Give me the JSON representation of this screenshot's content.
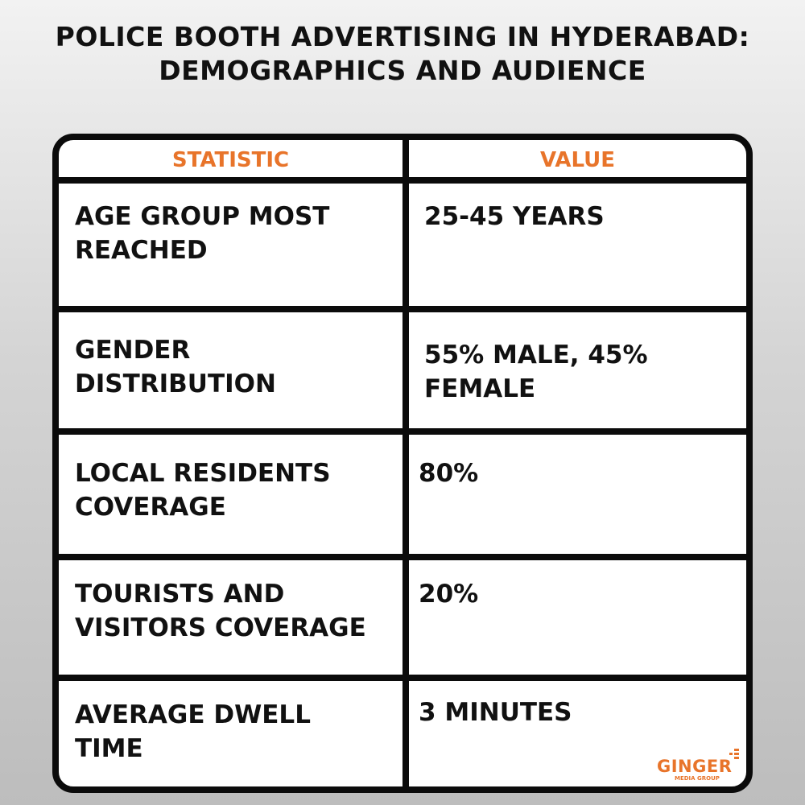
{
  "header": {
    "title_lines": [
      "POLICE BOOTH ADVERTISING IN HYDERABAD:",
      "DEMOGRAPHICS AND AUDIENCE"
    ]
  },
  "table": {
    "columns": [
      "STATISTIC",
      "VALUE"
    ],
    "rows": [
      [
        "AGE GROUP MOST REACHED",
        "25-45 YEARS"
      ],
      [
        "GENDER DISTRIBUTION",
        "55% MALE, 45% FEMALE"
      ],
      [
        "LOCAL RESIDENTS COVERAGE",
        "80%"
      ],
      [
        "TOURISTS AND VISITORS COVERAGE",
        "20%"
      ],
      [
        "AVERAGE DWELL TIME",
        "3 MINUTES"
      ]
    ]
  },
  "logo": {
    "name": "GINGER",
    "tagline": "MEDIA GROUP"
  }
}
